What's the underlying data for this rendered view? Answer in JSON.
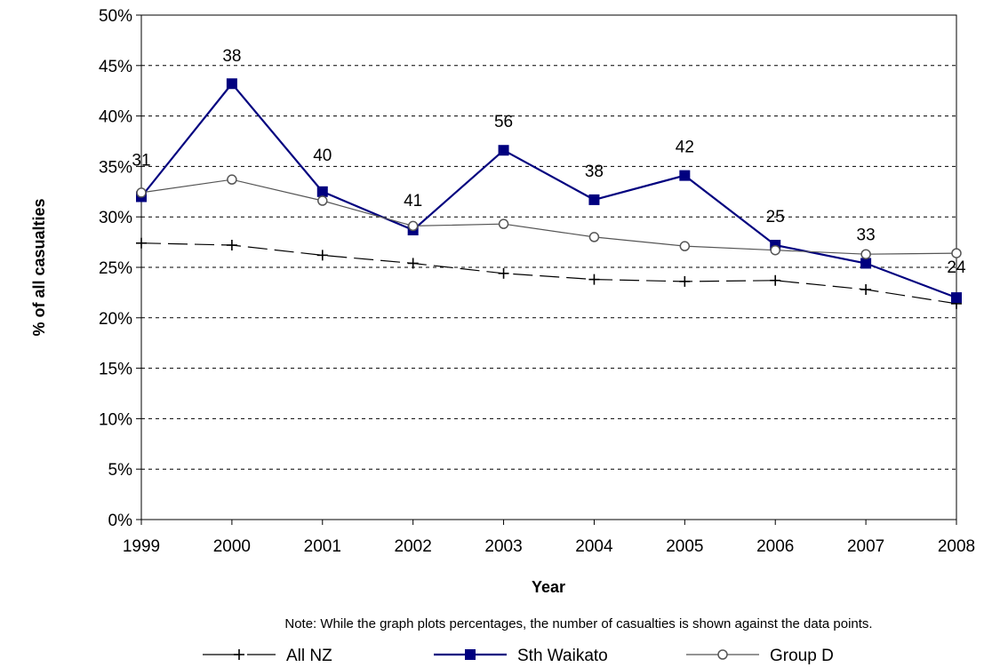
{
  "chart_data": {
    "type": "line",
    "x": [
      1999,
      2000,
      2001,
      2002,
      2003,
      2004,
      2005,
      2006,
      2007,
      2008
    ],
    "x_tick_labels": [
      "1999",
      "2000",
      "2001",
      "2002",
      "2003",
      "2004",
      "2005",
      "2006",
      "2007",
      "2008"
    ],
    "ylim": [
      0,
      50
    ],
    "y_ticks": [
      0,
      5,
      10,
      15,
      20,
      25,
      30,
      35,
      40,
      45,
      50
    ],
    "y_tick_labels": [
      "0%",
      "5%",
      "10%",
      "15%",
      "20%",
      "25%",
      "30%",
      "35%",
      "40%",
      "45%",
      "50%"
    ],
    "xlabel": "Year",
    "ylabel": "% of all casualties",
    "grid": "horizontal dashed",
    "legend_position": "bottom",
    "note": "Note: While the graph plots percentages, the number of casualties is shown against the data points.",
    "series": [
      {
        "name": "All NZ",
        "color": "#000000",
        "marker": "plus",
        "line_style": "dashed",
        "values": [
          27.4,
          27.2,
          26.2,
          25.4,
          24.4,
          23.8,
          23.6,
          23.7,
          22.8,
          21.4
        ]
      },
      {
        "name": "Sth Waikato",
        "color": "#00007f",
        "marker": "square",
        "line_style": "solid",
        "values": [
          32.0,
          43.2,
          32.5,
          28.7,
          36.6,
          31.7,
          34.1,
          27.2,
          25.4,
          22.0
        ],
        "data_labels": [
          "31",
          "38",
          "40",
          "41",
          "56",
          "38",
          "42",
          "25",
          "33",
          "24"
        ]
      },
      {
        "name": "Group D",
        "color": "#555555",
        "marker": "circle",
        "line_style": "solid",
        "values": [
          32.4,
          33.7,
          31.6,
          29.1,
          29.3,
          28.0,
          27.1,
          26.7,
          26.3,
          26.4
        ]
      }
    ]
  }
}
